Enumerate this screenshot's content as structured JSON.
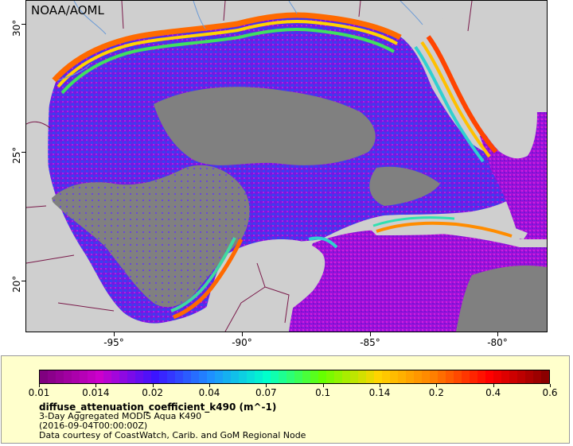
{
  "map": {
    "attribution": "NOAA/AOML",
    "x_ticks": [
      "-95°",
      "-90°",
      "-85°",
      "-80°"
    ],
    "y_ticks": [
      "30°",
      "25°",
      "20°"
    ]
  },
  "legend": {
    "colorbar_labels": [
      "0.01",
      "0.014",
      "0.02",
      "0.04",
      "0.07",
      "0.1",
      "0.14",
      "0.2",
      "0.4",
      "0.6"
    ],
    "colorbar_colors": [
      "#800080",
      "#cc00cc",
      "#3c14ff",
      "#1e90ff",
      "#00ffcc",
      "#66ff00",
      "#ffd400",
      "#ff7f00",
      "#ff0000",
      "#8b0000"
    ],
    "title": "diffuse_attenuation_coefficient_k490 (m^-1)",
    "line1": "3-Day Aggregated MODIS Aqua K490",
    "line2": "(2016-09-04T00:00:00Z)",
    "line3": "Data courtesy of CoastWatch, Carib. and GoM Regional Node"
  },
  "colors": {
    "land": "#cfcfcf",
    "nodata": "#808080",
    "border": "#7a1a4a",
    "river": "#6a9ad6",
    "legend_bg": "#ffffcc"
  }
}
